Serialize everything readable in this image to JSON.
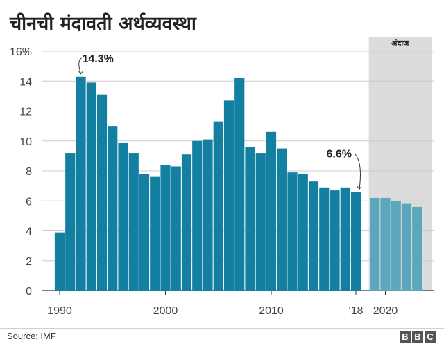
{
  "title": "चीनची मंदावती अर्थव्यवस्था",
  "source": "Source: IMF",
  "logo": [
    "B",
    "B",
    "C"
  ],
  "colors": {
    "actual": "#1380A1",
    "forecast": "#5AA7BE",
    "forecast_band": "#dcdcdc",
    "gridline": "#cccccc",
    "text": "#222222"
  },
  "chart_data": {
    "type": "bar",
    "title": "चीनची मंदावती अर्थव्यवस्था",
    "xlabel": "",
    "ylabel": "",
    "ylim": [
      0,
      16
    ],
    "y_ticks": [
      0,
      2,
      4,
      6,
      8,
      10,
      12,
      14,
      16
    ],
    "y_tick_labels": [
      "0",
      "2",
      "4",
      "6",
      "8",
      "10",
      "12",
      "14",
      "16%"
    ],
    "x_tick_labels": [
      {
        "year": 1990,
        "label": "1990"
      },
      {
        "year": 2000,
        "label": "2000"
      },
      {
        "year": 2010,
        "label": "2010"
      },
      {
        "year": 2018,
        "label": "'18"
      },
      {
        "year": 2020,
        "label": "2020"
      }
    ],
    "grid": "horizontal",
    "forecast_label": "अंदाज",
    "series": [
      {
        "kind": "actual",
        "x": [
          1990,
          1991,
          1992,
          1993,
          1994,
          1995,
          1996,
          1997,
          1998,
          1999,
          2000,
          2001,
          2002,
          2003,
          2004,
          2005,
          2006,
          2007,
          2008,
          2009,
          2010,
          2011,
          2012,
          2013,
          2014,
          2015,
          2016,
          2017,
          2018
        ],
        "values": [
          3.9,
          9.2,
          14.3,
          13.9,
          13.1,
          11.0,
          9.9,
          9.2,
          7.8,
          7.6,
          8.4,
          8.3,
          9.1,
          10.0,
          10.1,
          11.3,
          12.7,
          14.2,
          9.6,
          9.2,
          10.6,
          9.5,
          7.9,
          7.8,
          7.3,
          6.9,
          6.7,
          6.9,
          6.6
        ]
      },
      {
        "kind": "forecast",
        "x": [
          2019,
          2020,
          2021,
          2022,
          2023
        ],
        "values": [
          6.2,
          6.2,
          6.0,
          5.8,
          5.6
        ]
      }
    ],
    "annotations": [
      {
        "x": 1992,
        "value": 14.3,
        "text": "14.3%"
      },
      {
        "x": 2018,
        "value": 6.6,
        "text": "6.6%"
      }
    ]
  }
}
